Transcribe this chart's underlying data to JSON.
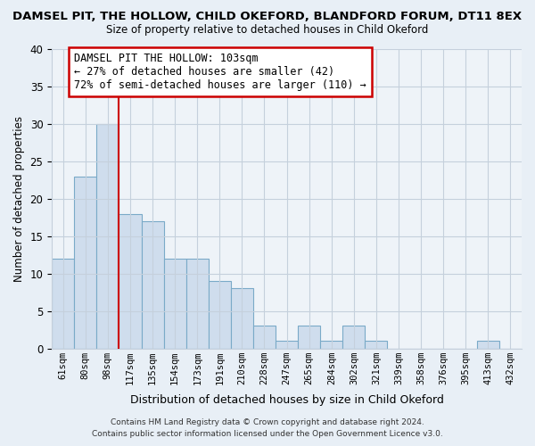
{
  "title": "DAMSEL PIT, THE HOLLOW, CHILD OKEFORD, BLANDFORD FORUM, DT11 8EX",
  "subtitle": "Size of property relative to detached houses in Child Okeford",
  "xlabel": "Distribution of detached houses by size in Child Okeford",
  "ylabel": "Number of detached properties",
  "bar_color": "#cfdded",
  "bar_edge_color": "#7aaac8",
  "categories": [
    "61sqm",
    "80sqm",
    "98sqm",
    "117sqm",
    "135sqm",
    "154sqm",
    "173sqm",
    "191sqm",
    "210sqm",
    "228sqm",
    "247sqm",
    "265sqm",
    "284sqm",
    "302sqm",
    "321sqm",
    "339sqm",
    "358sqm",
    "376sqm",
    "395sqm",
    "413sqm",
    "432sqm"
  ],
  "values": [
    12,
    23,
    30,
    18,
    17,
    12,
    12,
    9,
    8,
    3,
    1,
    3,
    1,
    3,
    1,
    0,
    0,
    0,
    0,
    1,
    0
  ],
  "ylim": [
    0,
    40
  ],
  "yticks": [
    0,
    5,
    10,
    15,
    20,
    25,
    30,
    35,
    40
  ],
  "vline_color": "#cc0000",
  "annotation_line1": "DAMSEL PIT THE HOLLOW: 103sqm",
  "annotation_line2": "← 27% of detached houses are smaller (42)",
  "annotation_line3": "72% of semi-detached houses are larger (110) →",
  "annotation_box_color": "#ffffff",
  "annotation_box_edge": "#cc0000",
  "footer_line1": "Contains HM Land Registry data © Crown copyright and database right 2024.",
  "footer_line2": "Contains public sector information licensed under the Open Government Licence v3.0.",
  "bg_color": "#e8eff6",
  "plot_bg_color": "#eef3f8",
  "grid_color": "#c5d0dc"
}
